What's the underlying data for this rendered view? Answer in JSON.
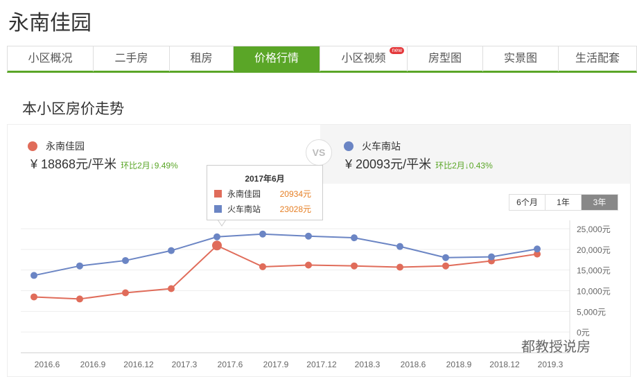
{
  "page_title": "永南佳园",
  "tabs": [
    {
      "label": "小区概况"
    },
    {
      "label": "二手房"
    },
    {
      "label": "租房"
    },
    {
      "label": "价格行情",
      "active": true
    },
    {
      "label": "小区视频",
      "badge": "new"
    },
    {
      "label": "房型图"
    },
    {
      "label": "实景图"
    },
    {
      "label": "生活配套"
    }
  ],
  "section_title": "本小区房价走势",
  "compare": {
    "left": {
      "name": "永南佳园",
      "price": "¥ 18868元/平米",
      "change": "环比2月↓9.49%",
      "color": "#e06c5a"
    },
    "vs": "VS",
    "right": {
      "name": "火车南站",
      "price": "¥ 20093元/平米",
      "change": "环比2月↓0.43%",
      "color": "#6b85c4"
    }
  },
  "range_buttons": [
    {
      "label": "6个月"
    },
    {
      "label": "1年"
    },
    {
      "label": "3年",
      "selected": true
    }
  ],
  "tooltip": {
    "title": "2017年6月",
    "rows": [
      {
        "name": "永南佳园",
        "value": "20934元"
      },
      {
        "name": "火车南站",
        "value": "23028元"
      }
    ]
  },
  "watermark": "都教授说房",
  "chart_data": {
    "type": "line",
    "categories": [
      "2016.6",
      "2016.9",
      "2016.12",
      "2017.3",
      "2017.6",
      "2017.9",
      "2017.12",
      "2018.3",
      "2018.6",
      "2018.9",
      "2018.12",
      "2019.3"
    ],
    "y_ticks": [
      "25,000元",
      "20,000元",
      "15,000元",
      "10,000元",
      "5,000元",
      "0元"
    ],
    "ylim": [
      -5000,
      25000
    ],
    "grid": true,
    "series": [
      {
        "name": "永南佳园",
        "color": "#e06c5a",
        "values": [
          8500,
          8000,
          9500,
          10500,
          20934,
          15800,
          16200,
          16000,
          15700,
          16000,
          17200,
          18868
        ]
      },
      {
        "name": "火车南站",
        "color": "#6b85c4",
        "values": [
          13700,
          16000,
          17300,
          19700,
          23028,
          23700,
          23200,
          22800,
          20700,
          18000,
          18200,
          20093
        ]
      }
    ]
  }
}
